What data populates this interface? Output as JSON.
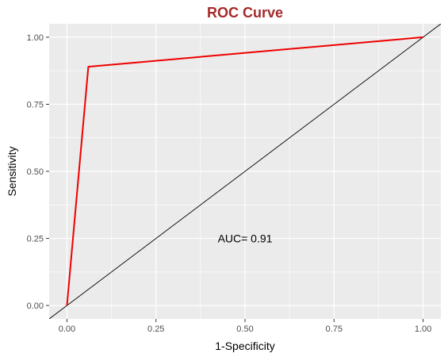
{
  "chart_data": {
    "type": "line",
    "title": "ROC Curve",
    "xlabel": "1-Specificity",
    "ylabel": "Sensitivity",
    "xlim": [
      -0.05,
      1.05
    ],
    "ylim": [
      -0.05,
      1.05
    ],
    "x_ticks": [
      "0.00",
      "0.25",
      "0.50",
      "0.75",
      "1.00"
    ],
    "y_ticks": [
      "0.00",
      "0.25",
      "0.50",
      "0.75",
      "1.00"
    ],
    "grid": true,
    "series": [
      {
        "x": [
          0.0,
          0.06,
          1.0
        ],
        "y": [
          0.0,
          0.89,
          1.0
        ],
        "color": "#ee0000"
      }
    ],
    "reference_line": {
      "intercept": 0,
      "slope": 1,
      "color": "#000000"
    },
    "annotations": [
      {
        "text": "AUC= 0.91",
        "x": 0.5,
        "y": 0.25
      }
    ],
    "colors": {
      "title": "#a52a2a",
      "panel": "#ebebeb",
      "grid": "#ffffff"
    }
  }
}
